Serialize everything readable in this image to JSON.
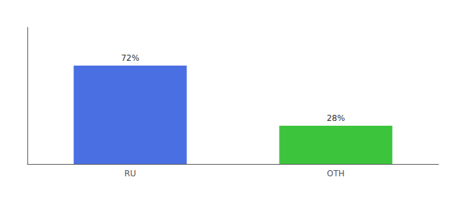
{
  "chart_data": {
    "type": "bar",
    "categories": [
      "RU",
      "OTH"
    ],
    "values": [
      72,
      28
    ],
    "value_labels": [
      "72%",
      "28%"
    ],
    "colors": [
      "#4A6FE3",
      "#3DC43D"
    ],
    "ylim": [
      0,
      100
    ],
    "data_labels": true,
    "tick_labels": "x",
    "grid": false
  }
}
